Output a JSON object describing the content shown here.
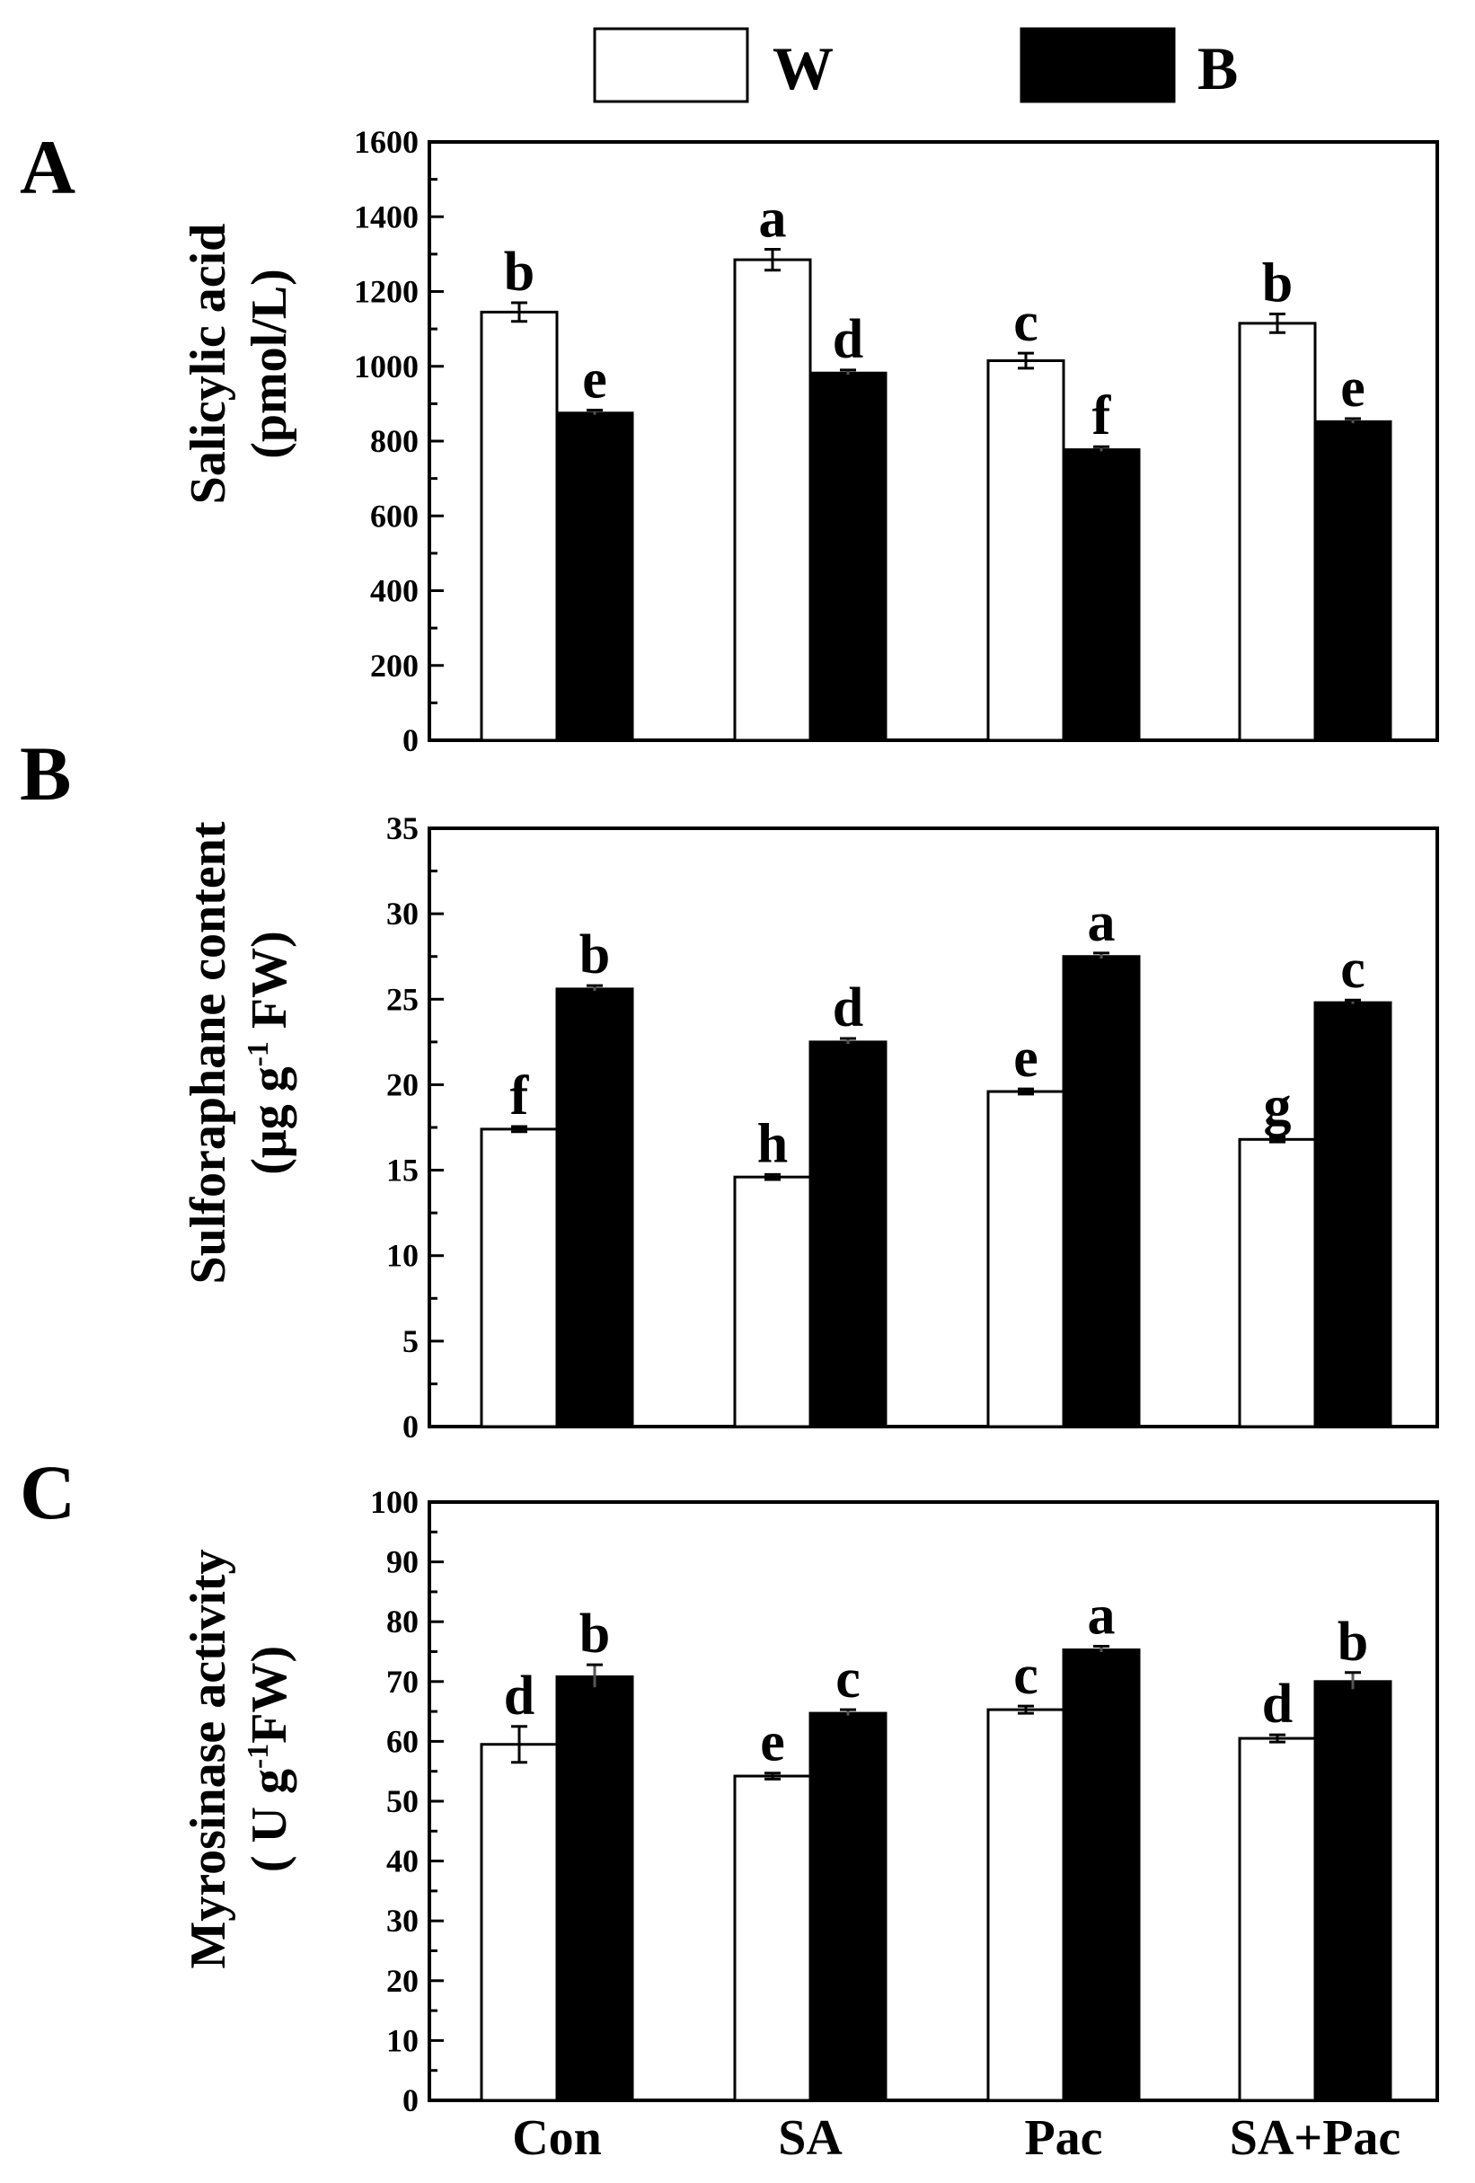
{
  "legend": {
    "white": "W",
    "black": "B",
    "colors": {
      "W": "#ffffff",
      "B": "#000000"
    }
  },
  "chart_data": [
    {
      "type": "bar",
      "panel": "A",
      "categories": [
        "Con",
        "SA",
        "Pac",
        "SA+Pac"
      ],
      "yticks": [
        "0",
        "200",
        "400",
        "600",
        "800",
        "1000",
        "1200",
        "1400",
        "1600"
      ],
      "ylim": [
        0,
        1600
      ],
      "ylabel_line1": "Salicylic acid",
      "ylabel_line2": "(pmol/L)",
      "series": [
        {
          "name": "W",
          "values": [
            1145,
            1285,
            1015,
            1115
          ],
          "errors": [
            25,
            28,
            20,
            25
          ],
          "labels": [
            "b",
            "a",
            "c",
            "b"
          ]
        },
        {
          "name": "B",
          "values": [
            875,
            982,
            777,
            852
          ],
          "errors": [
            8,
            8,
            8,
            8
          ],
          "labels": [
            "e",
            "d",
            "f",
            "e"
          ]
        }
      ]
    },
    {
      "type": "bar",
      "panel": "B",
      "categories": [
        "Con",
        "SA",
        "Pac",
        "SA+Pac"
      ],
      "yticks": [
        "0",
        "5",
        "10",
        "15",
        "20",
        "25",
        "30",
        "35"
      ],
      "ylim": [
        0,
        35
      ],
      "ylabel_line1": "Sulforaphane content",
      "ylabel_pre": "(μg g",
      "ylabel_sup": "-1",
      "ylabel_post": " FW)",
      "series": [
        {
          "name": "W",
          "values": [
            17.4,
            14.6,
            19.6,
            16.8
          ],
          "errors": [
            0.15,
            0.15,
            0.15,
            0.15
          ],
          "labels": [
            "f",
            "h",
            "e",
            "g"
          ]
        },
        {
          "name": "B",
          "values": [
            25.6,
            22.5,
            27.5,
            24.8
          ],
          "errors": [
            0.2,
            0.2,
            0.2,
            0.15
          ],
          "labels": [
            "b",
            "d",
            "a",
            "c"
          ]
        }
      ]
    },
    {
      "type": "bar",
      "panel": "C",
      "categories": [
        "Con",
        "SA",
        "Pac",
        "SA+Pac"
      ],
      "yticks": [
        "0",
        "10",
        "20",
        "30",
        "40",
        "50",
        "60",
        "70",
        "80",
        "90",
        "100"
      ],
      "ylim": [
        0,
        100
      ],
      "ylabel_line1": "Myrosinase activity",
      "ylabel_pre": "( U g",
      "ylabel_sup": "-1",
      "ylabel_post": "FW)",
      "series": [
        {
          "name": "W",
          "values": [
            59.5,
            54.2,
            65.3,
            60.5
          ],
          "errors": [
            3.0,
            0.5,
            0.6,
            0.6
          ],
          "labels": [
            "d",
            "e",
            "c",
            "d"
          ]
        },
        {
          "name": "B",
          "values": [
            70.8,
            64.7,
            75.3,
            70.0
          ],
          "errors": [
            2.0,
            0.6,
            0.6,
            1.5
          ],
          "labels": [
            "b",
            "c",
            "a",
            "b"
          ]
        }
      ]
    }
  ]
}
